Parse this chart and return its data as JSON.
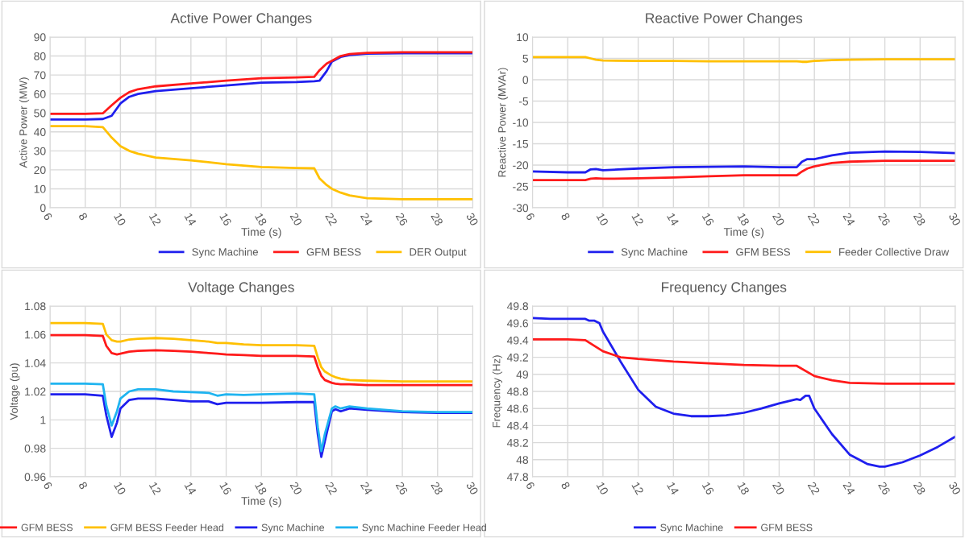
{
  "chart_data": [
    {
      "type": "line",
      "title": "Active Power Changes",
      "xlabel": "Time (s)",
      "ylabel": "Active Power (MW)",
      "xlim": [
        6,
        30
      ],
      "xticks": [
        6,
        8,
        10,
        12,
        14,
        16,
        18,
        20,
        22,
        24,
        26,
        28,
        30
      ],
      "ylim": [
        0,
        90
      ],
      "yticks": [
        0,
        10,
        20,
        30,
        40,
        50,
        60,
        70,
        80,
        90
      ],
      "grid": true,
      "legend": "bottom right",
      "marker": "none",
      "line_style": "solid",
      "x": [
        6,
        8,
        9,
        9.5,
        10,
        10.5,
        11,
        12,
        14,
        16,
        18,
        20,
        21,
        21.3,
        21.7,
        22,
        22.5,
        23,
        24,
        26,
        28,
        30
      ],
      "series": [
        {
          "name": "Sync Machine",
          "color": "#1f1fee",
          "values": [
            46.5,
            46.5,
            46.8,
            48.5,
            55,
            58.5,
            60,
            61.5,
            63,
            64.5,
            66,
            66.3,
            66.7,
            67,
            72,
            77,
            79.5,
            80.5,
            81.2,
            81.5,
            81.5,
            81.5
          ]
        },
        {
          "name": "GFM BESS",
          "color": "#ff1a1a",
          "values": [
            49.5,
            49.5,
            49.8,
            54,
            58,
            61,
            62.5,
            64,
            65.5,
            67,
            68.3,
            68.7,
            69,
            72.5,
            76,
            77.5,
            80,
            81,
            81.7,
            82,
            82,
            82
          ]
        },
        {
          "name": "DER Output",
          "color": "#ffc000",
          "values": [
            43,
            43,
            42.5,
            37,
            32.5,
            30,
            28.5,
            26.5,
            25,
            23,
            21.5,
            21,
            20.8,
            15.5,
            12,
            10,
            8,
            6.5,
            5,
            4.5,
            4.5,
            4.5
          ]
        }
      ]
    },
    {
      "type": "line",
      "title": "Reactive Power Changes",
      "xlabel": "Time (s)",
      "ylabel": "Reactive Power (MVAr)",
      "xlim": [
        6,
        30
      ],
      "xticks": [
        6,
        8,
        10,
        12,
        14,
        16,
        18,
        20,
        22,
        24,
        26,
        28,
        30
      ],
      "ylim": [
        -30,
        10
      ],
      "yticks": [
        -30,
        -25,
        -20,
        -15,
        -10,
        -5,
        0,
        5,
        10
      ],
      "grid": true,
      "legend": "bottom right",
      "marker": "none",
      "line_style": "solid",
      "x": [
        6,
        8,
        9,
        9.3,
        9.6,
        10,
        12,
        14,
        16,
        18,
        20,
        21,
        21.3,
        21.6,
        22,
        23,
        24,
        26,
        28,
        30
      ],
      "series": [
        {
          "name": "Sync Machine",
          "color": "#1f1fee",
          "values": [
            -21.5,
            -21.7,
            -21.7,
            -21,
            -20.9,
            -21.2,
            -20.8,
            -20.5,
            -20.4,
            -20.3,
            -20.5,
            -20.5,
            -19.2,
            -18.6,
            -18.6,
            -17.7,
            -17.1,
            -16.8,
            -16.9,
            -17.2
          ]
        },
        {
          "name": "GFM BESS",
          "color": "#ff1a1a",
          "values": [
            -23.5,
            -23.5,
            -23.5,
            -23.2,
            -23.1,
            -23.2,
            -23.1,
            -22.9,
            -22.6,
            -22.4,
            -22.4,
            -22.4,
            -21.5,
            -20.8,
            -20.3,
            -19.5,
            -19.2,
            -19,
            -19,
            -19
          ]
        },
        {
          "name": "Feeder Collective Draw",
          "color": "#ffc000",
          "values": [
            5.3,
            5.3,
            5.3,
            5,
            4.7,
            4.5,
            4.4,
            4.4,
            4.3,
            4.3,
            4.3,
            4.3,
            4.2,
            4.2,
            4.4,
            4.6,
            4.7,
            4.8,
            4.8,
            4.8
          ]
        }
      ]
    },
    {
      "type": "line",
      "title": "Voltage Changes",
      "xlabel": "Time (s)",
      "ylabel": "Voltage (pu)",
      "xlim": [
        6,
        30
      ],
      "xticks": [
        6,
        8,
        10,
        12,
        14,
        16,
        18,
        20,
        22,
        24,
        26,
        28,
        30
      ],
      "ylim": [
        0.96,
        1.08
      ],
      "yticks": [
        {
          "value": 0.96,
          "label": "0.96"
        },
        {
          "value": 0.98,
          "label": "0.98"
        },
        {
          "value": 1,
          "label": "1"
        },
        {
          "value": 1.02,
          "label": "1.02"
        },
        {
          "value": 1.04,
          "label": "1.04"
        },
        {
          "value": 1.06,
          "label": "1.06"
        },
        {
          "value": 1.08,
          "label": "1.08"
        }
      ],
      "grid": true,
      "legend": "bottom",
      "marker": "none",
      "line_style": "solid",
      "x": [
        6,
        8,
        9,
        9.2,
        9.5,
        9.8,
        10,
        10.5,
        11,
        12,
        13,
        14,
        15,
        15.5,
        16,
        17,
        18,
        20,
        21,
        21.2,
        21.4,
        21.6,
        22,
        22.2,
        22.5,
        23,
        24,
        26,
        28,
        30
      ],
      "series": [
        {
          "name": "GFM BESS",
          "color": "#ff1a1a",
          "values": [
            1.0595,
            1.0595,
            1.059,
            1.052,
            1.047,
            1.046,
            1.0465,
            1.048,
            1.0485,
            1.049,
            1.0485,
            1.048,
            1.047,
            1.0465,
            1.046,
            1.0455,
            1.045,
            1.045,
            1.0445,
            1.037,
            1.031,
            1.028,
            1.026,
            1.0255,
            1.025,
            1.025,
            1.0245,
            1.0245,
            1.0245,
            1.0245
          ]
        },
        {
          "name": "GFM BESS Feeder Head",
          "color": "#ffc000",
          "values": [
            1.068,
            1.068,
            1.0675,
            1.06,
            1.056,
            1.055,
            1.055,
            1.0565,
            1.057,
            1.0575,
            1.057,
            1.056,
            1.055,
            1.054,
            1.054,
            1.053,
            1.0525,
            1.0525,
            1.052,
            1.044,
            1.037,
            1.034,
            1.031,
            1.03,
            1.029,
            1.028,
            1.0275,
            1.027,
            1.027,
            1.027
          ]
        },
        {
          "name": "Sync Machine",
          "color": "#1f1fee",
          "values": [
            1.018,
            1.018,
            1.017,
            1.003,
            0.988,
            0.998,
            1.008,
            1.014,
            1.015,
            1.015,
            1.014,
            1.013,
            1.013,
            1.011,
            1.012,
            1.012,
            1.012,
            1.0125,
            1.0125,
            0.99,
            0.974,
            0.985,
            1.006,
            1.0075,
            1.006,
            1.008,
            1.007,
            1.0055,
            1.005,
            1.005
          ]
        },
        {
          "name": "Sync Machine Feeder Head",
          "color": "#1fb4f0",
          "values": [
            1.0255,
            1.0255,
            1.025,
            1.01,
            0.996,
            1.006,
            1.015,
            1.02,
            1.0215,
            1.0215,
            1.02,
            1.0195,
            1.019,
            1.017,
            1.018,
            1.0175,
            1.018,
            1.0185,
            1.018,
            0.995,
            0.978,
            0.99,
            1.008,
            1.0095,
            1.008,
            1.0095,
            1.008,
            1.006,
            1.0055,
            1.0055
          ]
        }
      ]
    },
    {
      "type": "line",
      "title": "Frequency Changes",
      "ylabel": "Frequency (Hz)",
      "xlim": [
        6,
        30
      ],
      "xticks": [
        6,
        8,
        10,
        12,
        14,
        16,
        18,
        20,
        22,
        24,
        26,
        28,
        30
      ],
      "ylim": [
        47.8,
        49.8
      ],
      "yticks": [
        {
          "value": 47.8,
          "label": "47.8"
        },
        {
          "value": 48,
          "label": "48"
        },
        {
          "value": 48.2,
          "label": "48.2"
        },
        {
          "value": 48.4,
          "label": "48.4"
        },
        {
          "value": 48.6,
          "label": "48.6"
        },
        {
          "value": 48.8,
          "label": "48.8"
        },
        {
          "value": 49,
          "label": "49"
        },
        {
          "value": 49.2,
          "label": "49.2"
        },
        {
          "value": 49.4,
          "label": "49.4"
        },
        {
          "value": 49.6,
          "label": "49.6"
        },
        {
          "value": 49.8,
          "label": "49.8"
        }
      ],
      "grid": true,
      "legend": "bottom",
      "marker": "none",
      "line_style": "solid",
      "series": [
        {
          "name": "Sync Machine",
          "color": "#1f1fee",
          "x": [
            6,
            7,
            8,
            9,
            9.2,
            9.5,
            9.8,
            10,
            11,
            12,
            13,
            14,
            15,
            16,
            17,
            18,
            19,
            20,
            21,
            21.2,
            21.5,
            21.7,
            22,
            23,
            24,
            25,
            25.7,
            26,
            27,
            28,
            29,
            30
          ],
          "values": [
            49.66,
            49.65,
            49.65,
            49.65,
            49.63,
            49.63,
            49.6,
            49.5,
            49.15,
            48.82,
            48.62,
            48.54,
            48.51,
            48.51,
            48.52,
            48.55,
            48.6,
            48.66,
            48.71,
            48.7,
            48.75,
            48.75,
            48.6,
            48.3,
            48.06,
            47.95,
            47.92,
            47.92,
            47.97,
            48.05,
            48.15,
            48.27
          ]
        },
        {
          "name": "GFM BESS",
          "color": "#ff1a1a",
          "x": [
            6,
            8,
            9,
            10,
            11,
            12,
            14,
            16,
            18,
            20,
            21,
            22,
            23,
            24,
            26,
            30
          ],
          "values": [
            49.41,
            49.41,
            49.4,
            49.27,
            49.2,
            49.18,
            49.15,
            49.13,
            49.11,
            49.1,
            49.1,
            48.98,
            48.93,
            48.9,
            48.89,
            48.89
          ]
        }
      ]
    }
  ]
}
